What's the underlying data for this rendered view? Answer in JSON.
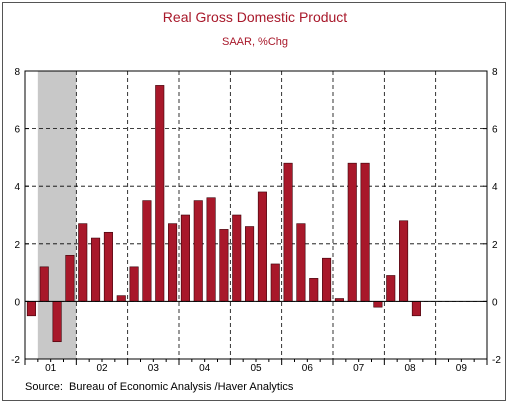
{
  "chart_data": {
    "type": "bar",
    "title": "Real Gross Domestic Product",
    "subtitle": "SAAR, %Chg",
    "source": "Source:  Bureau of Economic Analysis /Haver Analytics",
    "ylim": [
      -2,
      8
    ],
    "yticks": [
      -2,
      0,
      2,
      4,
      6,
      8
    ],
    "year_labels": [
      "01",
      "02",
      "03",
      "04",
      "05",
      "06",
      "07",
      "08",
      "09"
    ],
    "grid": true,
    "recession_shading": {
      "start_quarter": "2001 Q2",
      "end_quarter": "2001 Q4",
      "color": "#c8c8c8"
    },
    "bar_color": "#a8182a",
    "categories": [
      "2001 Q1",
      "2001 Q2",
      "2001 Q3",
      "2001 Q4",
      "2002 Q1",
      "2002 Q2",
      "2002 Q3",
      "2002 Q4",
      "2003 Q1",
      "2003 Q2",
      "2003 Q3",
      "2003 Q4",
      "2004 Q1",
      "2004 Q2",
      "2004 Q3",
      "2004 Q4",
      "2005 Q1",
      "2005 Q2",
      "2005 Q3",
      "2005 Q4",
      "2006 Q1",
      "2006 Q2",
      "2006 Q3",
      "2006 Q4",
      "2007 Q1",
      "2007 Q2",
      "2007 Q3",
      "2007 Q4",
      "2008 Q1",
      "2008 Q2",
      "2008 Q3"
    ],
    "values": [
      -0.5,
      1.2,
      -1.4,
      1.6,
      2.7,
      2.2,
      2.4,
      0.2,
      1.2,
      3.5,
      7.5,
      2.7,
      3.0,
      3.5,
      3.6,
      2.5,
      3.0,
      2.6,
      3.8,
      1.3,
      4.8,
      2.7,
      0.8,
      1.5,
      0.1,
      4.8,
      4.8,
      -0.2,
      0.9,
      2.8,
      -0.5
    ]
  }
}
